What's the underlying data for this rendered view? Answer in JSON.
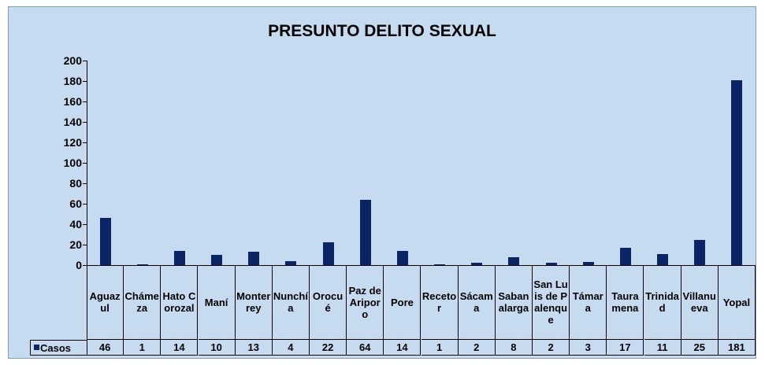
{
  "chart_data": {
    "type": "bar",
    "title": "PRESUNTO DELITO SEXUAL",
    "categories": [
      "Aguazul",
      "Chámeza",
      "Hato Corozal",
      "Maní",
      "Monterrey",
      "Nunchía",
      "Orocué",
      "Paz de Ariporo",
      "Pore",
      "Recetor",
      "Sácama",
      "Sabanalarga",
      "San Luis de Palenque",
      "Támara",
      "Tauramena",
      "Trinidad",
      "Villanueva",
      "Yopal"
    ],
    "series": [
      {
        "name": "Casos",
        "color": "#0b2466",
        "values": [
          46,
          1,
          14,
          10,
          13,
          4,
          22,
          64,
          14,
          1,
          2,
          8,
          2,
          3,
          17,
          11,
          25,
          181
        ]
      }
    ],
    "ylim": [
      0,
      200
    ],
    "yticks": [
      0,
      20,
      40,
      60,
      80,
      100,
      120,
      140,
      160,
      180,
      200
    ],
    "grid": false,
    "data_table": true
  }
}
